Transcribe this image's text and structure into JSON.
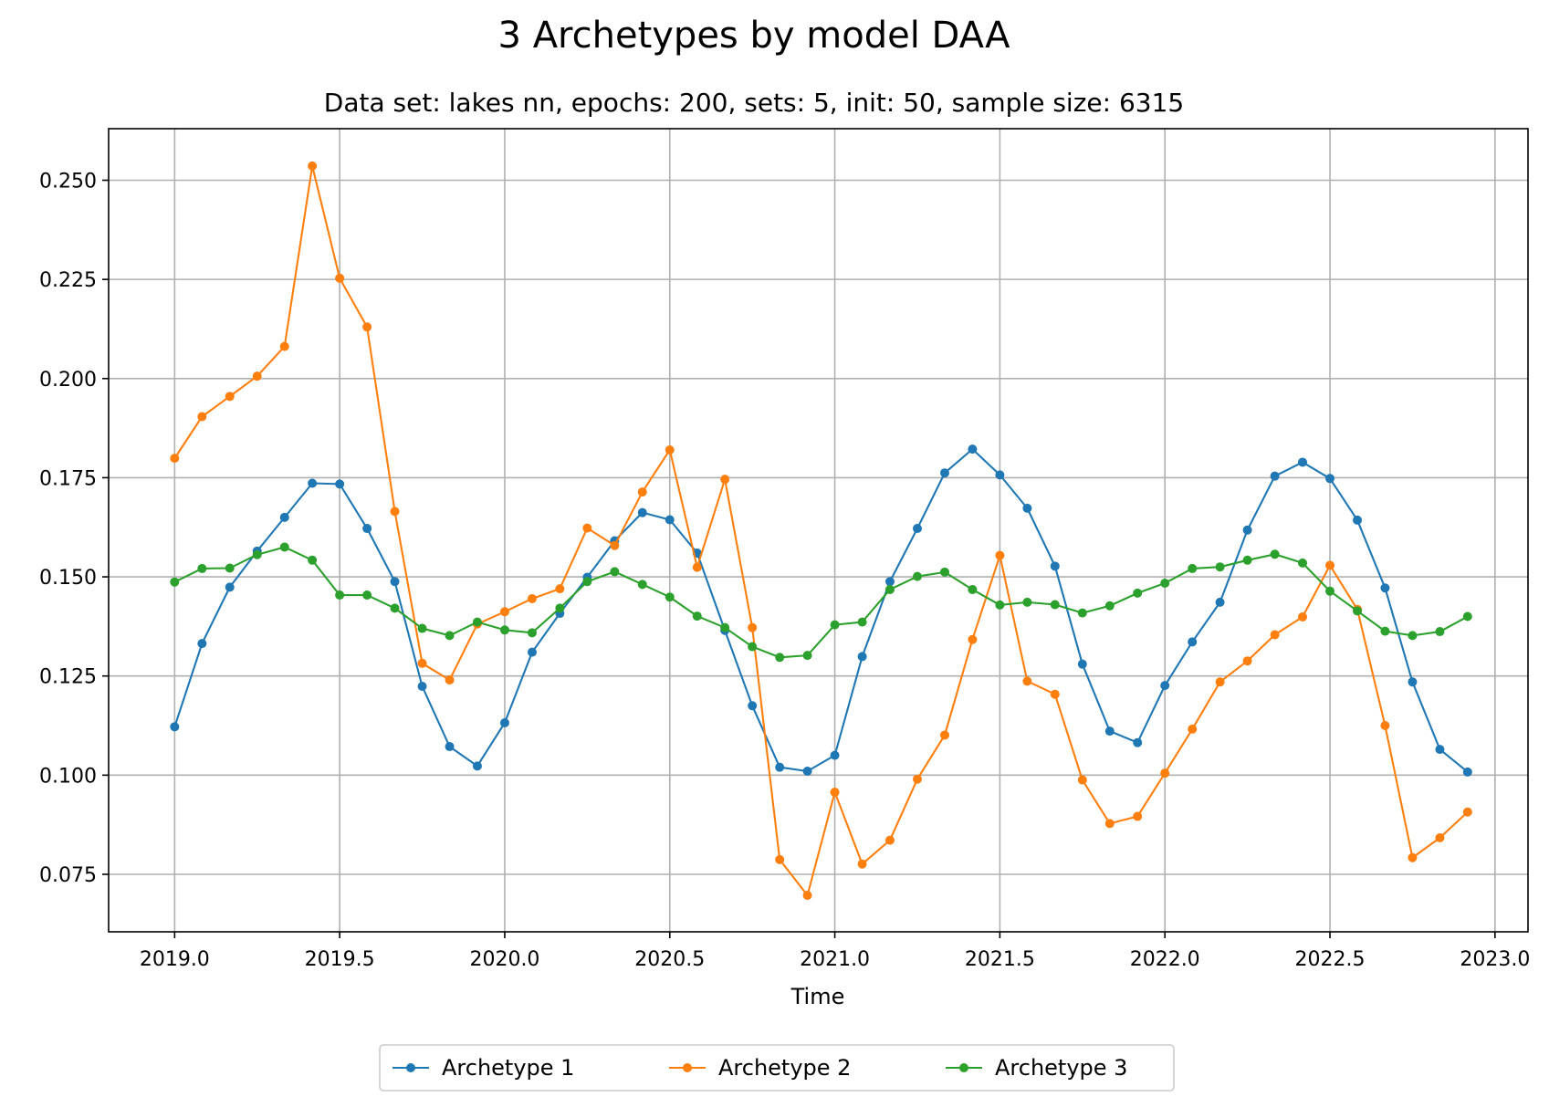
{
  "chart_data": {
    "type": "line",
    "title": "3 Archetypes by model DAA",
    "subtitle": "Data set: lakes nn, epochs: 200, sets: 5, init: 50, sample size: 6315",
    "xlabel": "Time",
    "ylabel": "",
    "xlim": [
      2018.8,
      2023.1
    ],
    "ylim": [
      0.0605,
      0.263
    ],
    "xticks": [
      2019.0,
      2019.5,
      2020.0,
      2020.5,
      2021.0,
      2021.5,
      2022.0,
      2022.5,
      2023.0
    ],
    "xtick_labels": [
      "2019.0",
      "2019.5",
      "2020.0",
      "2020.5",
      "2021.0",
      "2021.5",
      "2022.0",
      "2022.5",
      "2023.0"
    ],
    "yticks": [
      0.075,
      0.1,
      0.125,
      0.15,
      0.175,
      0.2,
      0.225,
      0.25
    ],
    "ytick_labels": [
      "0.075",
      "0.100",
      "0.125",
      "0.150",
      "0.175",
      "0.200",
      "0.225",
      "0.250"
    ],
    "grid": true,
    "legend_position": "bottom-center",
    "x": [
      2019.0,
      2019.083,
      2019.167,
      2019.25,
      2019.333,
      2019.417,
      2019.5,
      2019.583,
      2019.667,
      2019.75,
      2019.833,
      2019.917,
      2020.0,
      2020.083,
      2020.167,
      2020.25,
      2020.333,
      2020.417,
      2020.5,
      2020.583,
      2020.667,
      2020.75,
      2020.833,
      2020.917,
      2021.0,
      2021.083,
      2021.167,
      2021.25,
      2021.333,
      2021.417,
      2021.5,
      2021.583,
      2021.667,
      2021.75,
      2021.833,
      2021.917,
      2022.0,
      2022.083,
      2022.167,
      2022.25,
      2022.333,
      2022.417,
      2022.5,
      2022.583,
      2022.667,
      2022.75,
      2022.833,
      2022.917
    ],
    "series": [
      {
        "name": "Archetype 1",
        "color": "#1f77b4",
        "values": [
          0.1122,
          0.1332,
          0.1474,
          0.1565,
          0.165,
          0.1736,
          0.1734,
          0.1622,
          0.1488,
          0.1224,
          0.1072,
          0.1023,
          0.1132,
          0.131,
          0.1408,
          0.1499,
          0.1591,
          0.1662,
          0.1644,
          0.156,
          0.1365,
          0.1175,
          0.102,
          0.101,
          0.105,
          0.1299,
          0.1488,
          0.1622,
          0.1762,
          0.1822,
          0.1757,
          0.1673,
          0.1527,
          0.128,
          0.1111,
          0.1082,
          0.1226,
          0.1336,
          0.1436,
          0.1618,
          0.1754,
          0.1789,
          0.1748,
          0.1643,
          0.1472,
          0.1235,
          0.1065,
          0.1008
        ]
      },
      {
        "name": "Archetype 2",
        "color": "#ff7f0e",
        "values": [
          0.1799,
          0.1904,
          0.1955,
          0.2006,
          0.2081,
          0.2536,
          0.2253,
          0.213,
          0.1665,
          0.1282,
          0.124,
          0.1381,
          0.1412,
          0.1445,
          0.147,
          0.1623,
          0.1579,
          0.1714,
          0.182,
          0.1524,
          0.1746,
          0.1372,
          0.0787,
          0.0697,
          0.0957,
          0.0776,
          0.0836,
          0.099,
          0.1101,
          0.1342,
          0.1554,
          0.1237,
          0.1204,
          0.0988,
          0.0878,
          0.0896,
          0.1005,
          0.1116,
          0.1235,
          0.1288,
          0.1354,
          0.1399,
          0.1529,
          0.1418,
          0.1125,
          0.0792,
          0.0842,
          0.0907
        ]
      },
      {
        "name": "Archetype 3",
        "color": "#2ca02c",
        "values": [
          0.1487,
          0.1521,
          0.1522,
          0.1556,
          0.1575,
          0.1542,
          0.1454,
          0.1454,
          0.1421,
          0.137,
          0.1352,
          0.1386,
          0.1366,
          0.1359,
          0.1421,
          0.1488,
          0.1513,
          0.1481,
          0.1449,
          0.1401,
          0.1372,
          0.1324,
          0.1297,
          0.1302,
          0.1379,
          0.1386,
          0.1468,
          0.1501,
          0.1512,
          0.1468,
          0.1429,
          0.1436,
          0.143,
          0.1409,
          0.1427,
          0.1459,
          0.1484,
          0.1521,
          0.1525,
          0.1542,
          0.1557,
          0.1535,
          0.1464,
          0.1414,
          0.1363,
          0.1352,
          0.1362,
          0.14
        ]
      }
    ]
  }
}
